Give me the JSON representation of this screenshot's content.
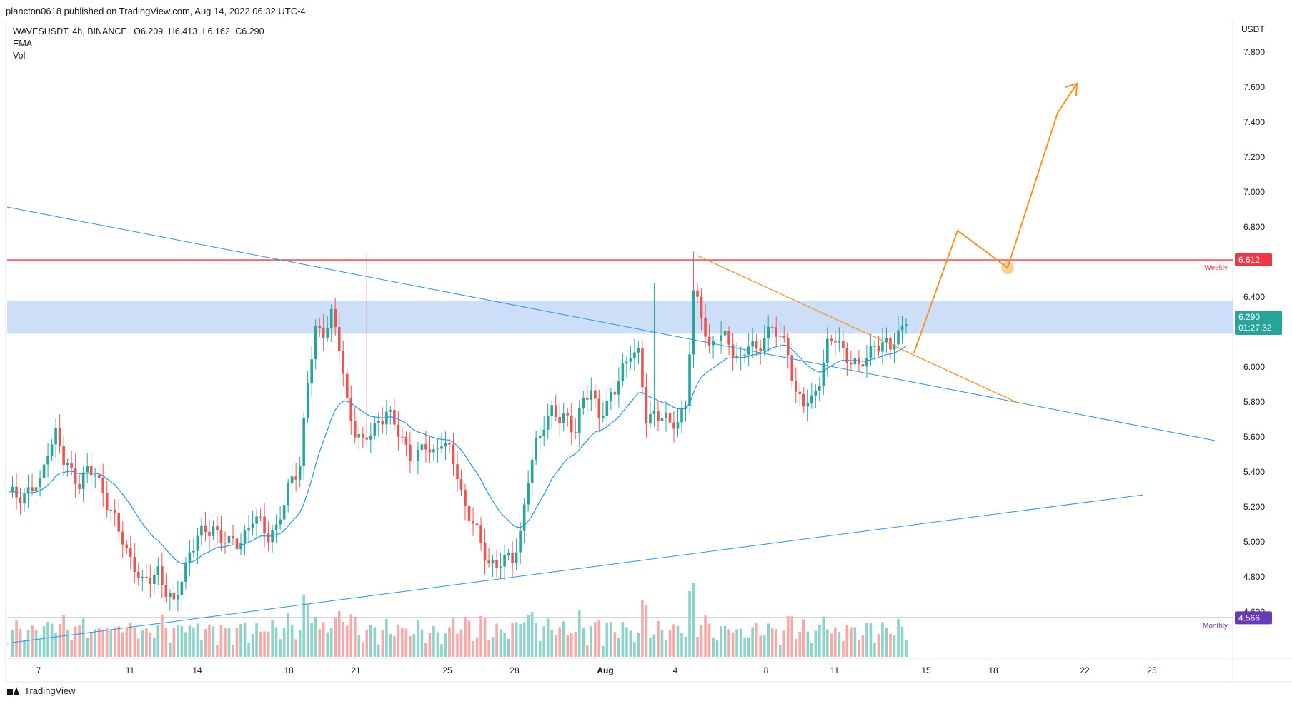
{
  "header": {
    "publish_line": "plancton0618 published on TradingView.com, Aug 14, 2022 06:32 UTC-4"
  },
  "legend": {
    "symbol": "WAVESUSDT, 4h, BINANCE",
    "open": "O6.209",
    "high": "H6.413",
    "low": "L6.162",
    "close": "C6.290",
    "indicator1": "EMA",
    "indicator2": "Vol"
  },
  "footer": {
    "brand": "TradingView"
  },
  "chart_data": {
    "type": "candlestick",
    "currency_label": "USDT",
    "y_ticks": [
      "7.800",
      "7.600",
      "7.400",
      "7.200",
      "7.000",
      "6.800",
      "6.400",
      "6.200",
      "6.000",
      "5.800",
      "5.600",
      "5.400",
      "5.200",
      "5.000",
      "4.800",
      "4.600"
    ],
    "ylim": [
      4.5,
      7.9
    ],
    "x_ticks": [
      "7",
      "11",
      "14",
      "18",
      "21",
      "25",
      "28",
      "Aug",
      "4",
      "8",
      "11",
      "15",
      "18",
      "22",
      "25"
    ],
    "price_labels": [
      {
        "value": "6.612",
        "name": "Weekly",
        "color": "#f23645"
      },
      {
        "value": "4.566",
        "name": "Monthly",
        "color": "#673ab7"
      }
    ],
    "last_price": {
      "value": "6.290",
      "countdown": "01:27:32",
      "color": "#26a69a"
    },
    "zone": {
      "low": 6.19,
      "high": 6.38,
      "color": "#bcd3f5"
    },
    "close_path": [
      [
        0,
        5.26
      ],
      [
        4,
        5.28
      ],
      [
        8,
        5.32
      ],
      [
        10,
        5.55
      ],
      [
        12,
        5.62
      ],
      [
        14,
        5.45
      ],
      [
        16,
        5.4
      ],
      [
        18,
        5.35
      ],
      [
        20,
        5.4
      ],
      [
        22,
        5.38
      ],
      [
        24,
        5.3
      ],
      [
        26,
        5.18
      ],
      [
        28,
        5.05
      ],
      [
        30,
        4.95
      ],
      [
        32,
        4.88
      ],
      [
        34,
        4.75
      ],
      [
        36,
        4.78
      ],
      [
        38,
        4.85
      ],
      [
        40,
        4.72
      ],
      [
        42,
        4.62
      ],
      [
        44,
        4.8
      ],
      [
        46,
        4.95
      ],
      [
        48,
        5.02
      ],
      [
        50,
        5.05
      ],
      [
        52,
        5.1
      ],
      [
        54,
        5.02
      ],
      [
        56,
        4.98
      ],
      [
        58,
        5.0
      ],
      [
        60,
        5.05
      ],
      [
        62,
        5.12
      ],
      [
        64,
        5.1
      ],
      [
        66,
        5.05
      ],
      [
        68,
        5.08
      ],
      [
        70,
        5.2
      ],
      [
        72,
        5.38
      ],
      [
        74,
        5.45
      ],
      [
        76,
        5.9
      ],
      [
        78,
        6.2
      ],
      [
        80,
        6.22
      ],
      [
        82,
        6.3
      ],
      [
        84,
        6.1
      ],
      [
        86,
        5.8
      ],
      [
        88,
        5.65
      ],
      [
        90,
        5.55
      ],
      [
        92,
        5.62
      ],
      [
        94,
        5.7
      ],
      [
        96,
        5.75
      ],
      [
        98,
        5.65
      ],
      [
        100,
        5.6
      ],
      [
        102,
        5.5
      ],
      [
        104,
        5.48
      ],
      [
        106,
        5.55
      ],
      [
        108,
        5.52
      ],
      [
        110,
        5.58
      ],
      [
        112,
        5.5
      ],
      [
        114,
        5.4
      ],
      [
        116,
        5.2
      ],
      [
        118,
        5.1
      ],
      [
        120,
        4.98
      ],
      [
        122,
        4.9
      ],
      [
        124,
        4.86
      ],
      [
        126,
        4.88
      ],
      [
        128,
        4.92
      ],
      [
        130,
        5.05
      ],
      [
        132,
        5.35
      ],
      [
        134,
        5.55
      ],
      [
        136,
        5.7
      ],
      [
        138,
        5.75
      ],
      [
        140,
        5.68
      ],
      [
        142,
        5.72
      ],
      [
        144,
        5.65
      ],
      [
        146,
        5.8
      ],
      [
        148,
        5.85
      ],
      [
        150,
        5.75
      ],
      [
        152,
        5.78
      ],
      [
        154,
        5.85
      ],
      [
        156,
        6.0
      ],
      [
        158,
        6.1
      ],
      [
        160,
        6.05
      ],
      [
        162,
        5.7
      ],
      [
        164,
        5.75
      ],
      [
        166,
        5.72
      ],
      [
        168,
        5.65
      ],
      [
        170,
        5.7
      ],
      [
        172,
        5.8
      ],
      [
        174,
        6.4
      ],
      [
        176,
        6.3
      ],
      [
        178,
        6.12
      ],
      [
        180,
        6.18
      ],
      [
        182,
        6.15
      ],
      [
        184,
        6.1
      ],
      [
        186,
        6.05
      ],
      [
        188,
        6.12
      ],
      [
        190,
        6.08
      ],
      [
        192,
        6.2
      ],
      [
        194,
        6.22
      ],
      [
        196,
        6.15
      ],
      [
        198,
        6.1
      ],
      [
        200,
        5.85
      ],
      [
        202,
        5.78
      ],
      [
        204,
        5.8
      ],
      [
        206,
        5.95
      ],
      [
        208,
        6.12
      ],
      [
        210,
        6.15
      ],
      [
        212,
        6.1
      ],
      [
        214,
        6.05
      ],
      [
        216,
        5.98
      ],
      [
        218,
        6.05
      ],
      [
        220,
        6.15
      ],
      [
        222,
        6.12
      ],
      [
        224,
        6.1
      ],
      [
        226,
        6.2
      ],
      [
        228,
        6.29
      ]
    ],
    "annotations": [
      "EMA line",
      "descending trendline",
      "ascending trendline",
      "descending orange trendline",
      "orange projection path"
    ]
  }
}
